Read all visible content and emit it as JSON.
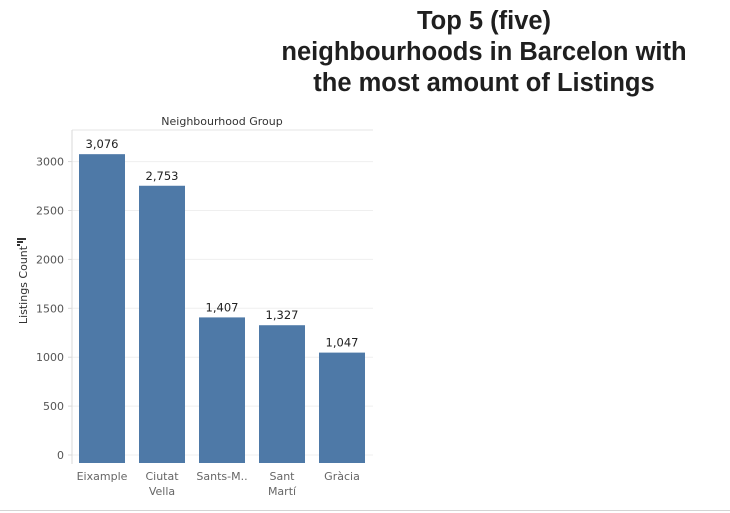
{
  "title_lines": [
    "Top 5 (five)",
    "neighbourhoods in Barcelon with",
    "the most amount of Listings"
  ],
  "chart_data": {
    "type": "bar",
    "column_header": "Neighbourhood Group",
    "ylabel": "Listings Count",
    "categories": [
      [
        "Eixample"
      ],
      [
        "Ciutat",
        "Vella"
      ],
      [
        "Sants-M.."
      ],
      [
        "Sant",
        "Martí"
      ],
      [
        "Gràcia"
      ]
    ],
    "values": [
      3076,
      2753,
      1407,
      1327,
      1047
    ],
    "value_labels": [
      "3,076",
      "2,753",
      "1,407",
      "1,327",
      "1,047"
    ],
    "ylim": [
      0,
      3300
    ],
    "yticks": [
      0,
      500,
      1000,
      1500,
      2000,
      2500,
      3000
    ],
    "grid": true,
    "bar_color": "#4e79a7",
    "sort_icon": "sort-descending-icon"
  }
}
